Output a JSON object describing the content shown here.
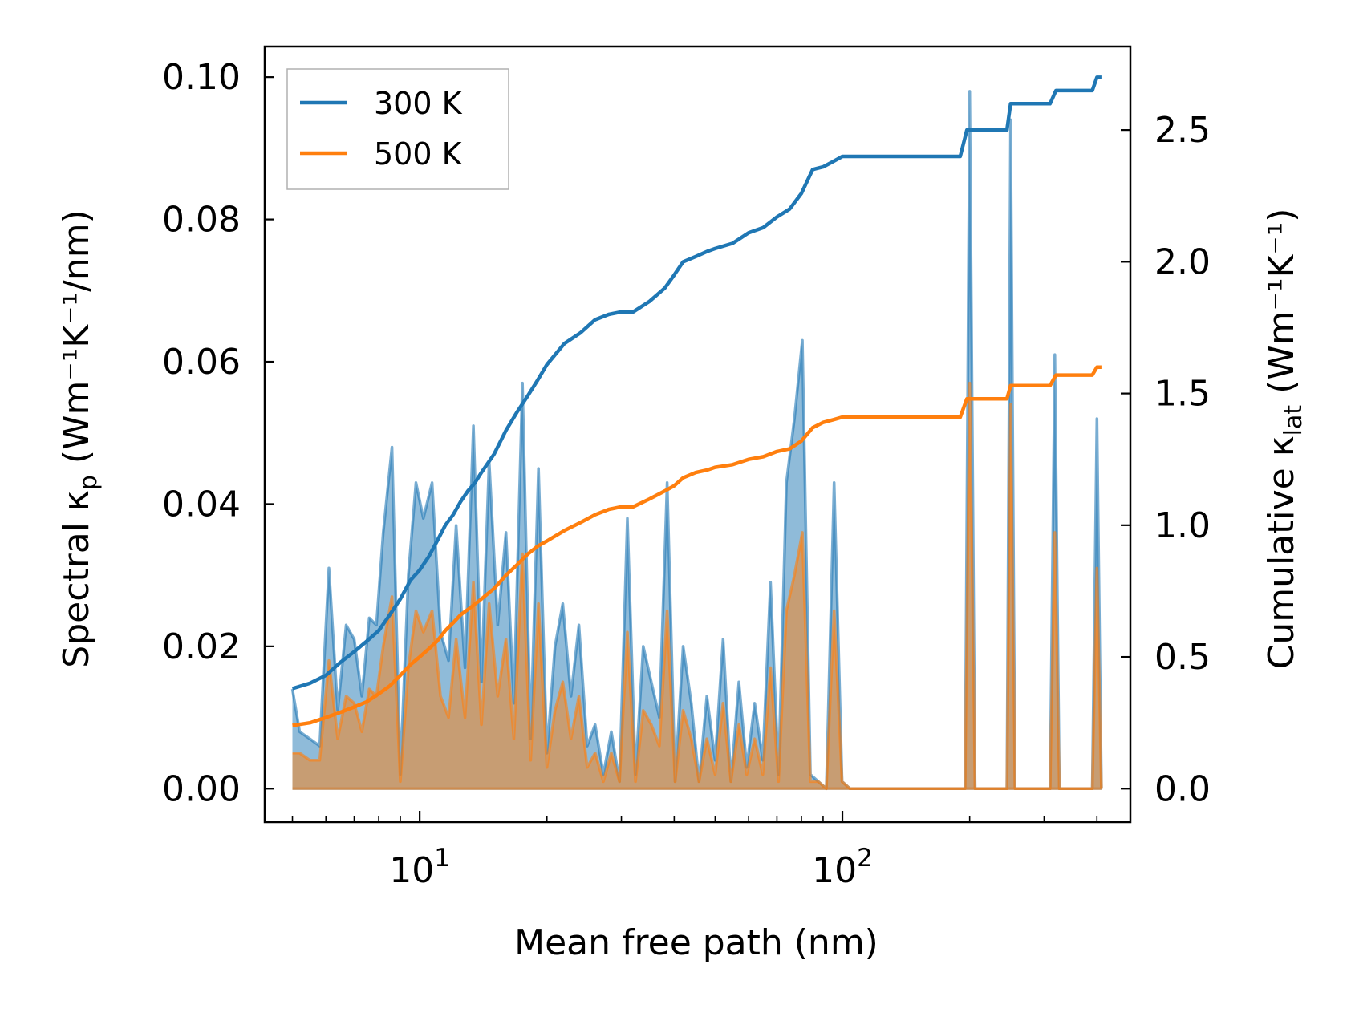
{
  "chart_data": {
    "type": "line",
    "xscale": "log",
    "xlabel": "Mean free path (nm)",
    "ylabel_left": {
      "prefix": "Spectral κ",
      "sub": "p",
      "units": "(Wm⁻¹K⁻¹/nm)"
    },
    "ylabel_right": {
      "prefix": "Cumulative κ",
      "sub": "lat",
      "units": "(Wm⁻¹K⁻¹)"
    },
    "xlim": [
      4.3,
      480
    ],
    "ylim_left": [
      -0.0047,
      0.1043
    ],
    "ylim_right": [
      -0.127,
      2.817
    ],
    "xticks": [
      {
        "value": 10,
        "base": "10",
        "exp": "1"
      },
      {
        "value": 100,
        "base": "10",
        "exp": "2"
      }
    ],
    "yticks_left": [
      "0.00",
      "0.02",
      "0.04",
      "0.06",
      "0.08",
      "0.10"
    ],
    "yticks_left_values": [
      0,
      0.02,
      0.04,
      0.06,
      0.08,
      0.1
    ],
    "yticks_right": [
      "0.0",
      "0.5",
      "1.0",
      "1.5",
      "2.0",
      "2.5"
    ],
    "yticks_right_values": [
      0,
      0.5,
      1.0,
      1.5,
      2.0,
      2.5
    ],
    "legend": {
      "location": "upper-left",
      "entries": [
        "300 K",
        "500 K"
      ]
    },
    "colors": {
      "300 K": "#1f77b4",
      "500 K": "#ff7f0e"
    },
    "series": [
      {
        "name": "300 K",
        "axis": "left",
        "style": "filled-spectral",
        "x": [
          5.0,
          5.2,
          5.5,
          5.8,
          6.1,
          6.4,
          6.7,
          7.0,
          7.3,
          7.6,
          7.9,
          8.2,
          8.6,
          9.0,
          9.4,
          9.8,
          10.2,
          10.7,
          11.2,
          11.7,
          12.2,
          12.8,
          13.4,
          14.0,
          14.6,
          15.3,
          16.0,
          16.7,
          17.5,
          18.3,
          19.1,
          20.0,
          20.9,
          21.8,
          22.8,
          23.8,
          24.9,
          26.0,
          27.2,
          28.4,
          29.7,
          31.0,
          32.4,
          33.8,
          35.3,
          36.9,
          38.5,
          40.2,
          42.0,
          43.9,
          45.8,
          47.8,
          50.0,
          52.2,
          54.5,
          56.9,
          59.4,
          62.0,
          64.8,
          67.6,
          70.6,
          73.7,
          77.0,
          80.4,
          84.0,
          87.7,
          91.6,
          95.6,
          99.8,
          104.2,
          108.8,
          195.0,
          200.0,
          206.0,
          245.0,
          250.0,
          256.0,
          310.0,
          318.0,
          326.0,
          390.0,
          400.0,
          410.0
        ],
        "values": [
          0.014,
          0.008,
          0.007,
          0.006,
          0.031,
          0.011,
          0.023,
          0.021,
          0.013,
          0.024,
          0.023,
          0.036,
          0.048,
          0.002,
          0.03,
          0.043,
          0.038,
          0.043,
          0.022,
          0.018,
          0.037,
          0.017,
          0.051,
          0.015,
          0.046,
          0.023,
          0.036,
          0.012,
          0.057,
          0.007,
          0.045,
          0.005,
          0.02,
          0.026,
          0.013,
          0.023,
          0.006,
          0.009,
          0.002,
          0.008,
          0.001,
          0.038,
          0.002,
          0.02,
          0.015,
          0.01,
          0.043,
          0.001,
          0.02,
          0.012,
          0.001,
          0.013,
          0.004,
          0.021,
          0.001,
          0.015,
          0.003,
          0.012,
          0.004,
          0.029,
          0.002,
          0.043,
          0.052,
          0.063,
          0.002,
          0.001,
          0.0,
          0.043,
          0.001,
          0.0,
          0.0,
          0.0,
          0.098,
          0.0,
          0.0,
          0.094,
          0.0,
          0.0,
          0.061,
          0.0,
          0.0,
          0.052,
          0.0
        ]
      },
      {
        "name": "500 K",
        "axis": "left",
        "style": "filled-spectral",
        "x": [
          5.0,
          5.2,
          5.5,
          5.8,
          6.1,
          6.4,
          6.7,
          7.0,
          7.3,
          7.6,
          7.9,
          8.2,
          8.6,
          9.0,
          9.4,
          9.8,
          10.2,
          10.7,
          11.2,
          11.7,
          12.2,
          12.8,
          13.4,
          14.0,
          14.6,
          15.3,
          16.0,
          16.7,
          17.5,
          18.3,
          19.1,
          20.0,
          20.9,
          21.8,
          22.8,
          23.8,
          24.9,
          26.0,
          27.2,
          28.4,
          29.7,
          31.0,
          32.4,
          33.8,
          35.3,
          36.9,
          38.5,
          40.2,
          42.0,
          43.9,
          45.8,
          47.8,
          50.0,
          52.2,
          54.5,
          56.9,
          59.4,
          62.0,
          64.8,
          67.6,
          70.6,
          73.7,
          77.0,
          80.4,
          84.0,
          87.7,
          91.6,
          95.6,
          99.8,
          104.2,
          108.8,
          195.0,
          200.0,
          206.0,
          245.0,
          250.0,
          256.0,
          310.0,
          318.0,
          326.0,
          390.0,
          400.0,
          410.0
        ],
        "values": [
          0.005,
          0.005,
          0.004,
          0.004,
          0.018,
          0.007,
          0.013,
          0.012,
          0.008,
          0.014,
          0.013,
          0.02,
          0.027,
          0.001,
          0.017,
          0.025,
          0.022,
          0.025,
          0.013,
          0.01,
          0.021,
          0.01,
          0.029,
          0.009,
          0.026,
          0.013,
          0.021,
          0.007,
          0.033,
          0.004,
          0.026,
          0.003,
          0.011,
          0.015,
          0.007,
          0.013,
          0.003,
          0.005,
          0.001,
          0.005,
          0.001,
          0.022,
          0.001,
          0.011,
          0.009,
          0.006,
          0.025,
          0.001,
          0.011,
          0.007,
          0.001,
          0.007,
          0.002,
          0.012,
          0.001,
          0.009,
          0.002,
          0.007,
          0.002,
          0.017,
          0.001,
          0.025,
          0.03,
          0.036,
          0.001,
          0.001,
          0.0,
          0.025,
          0.001,
          0.0,
          0.0,
          0.0,
          0.057,
          0.0,
          0.0,
          0.054,
          0.0,
          0.0,
          0.036,
          0.0,
          0.0,
          0.031,
          0.0
        ]
      },
      {
        "name": "300 K",
        "axis": "right",
        "style": "cumulative-line",
        "x": [
          5.0,
          5.5,
          6.0,
          6.5,
          7.0,
          7.5,
          8.0,
          8.5,
          9.0,
          9.5,
          10.0,
          10.5,
          11.0,
          11.5,
          12.0,
          12.5,
          13.0,
          13.5,
          14.0,
          15.0,
          16.0,
          17.0,
          18.0,
          19.0,
          20.0,
          22.0,
          24.0,
          26.0,
          28.0,
          30.0,
          32.0,
          35.0,
          38.0,
          40.0,
          42.0,
          45.0,
          48.0,
          50.0,
          55.0,
          60.0,
          65.0,
          70.0,
          75.0,
          80.0,
          85.0,
          90.0,
          95.0,
          100.0,
          120.0,
          150.0,
          190.0,
          197.0,
          245.0,
          250.0,
          310.0,
          320.0,
          390.0,
          400.0,
          410.0
        ],
        "values": [
          0.38,
          0.4,
          0.43,
          0.48,
          0.52,
          0.56,
          0.6,
          0.66,
          0.72,
          0.79,
          0.83,
          0.88,
          0.94,
          1.0,
          1.04,
          1.09,
          1.13,
          1.16,
          1.2,
          1.27,
          1.36,
          1.43,
          1.49,
          1.55,
          1.61,
          1.69,
          1.73,
          1.78,
          1.8,
          1.81,
          1.81,
          1.85,
          1.9,
          1.95,
          2.0,
          2.02,
          2.04,
          2.05,
          2.07,
          2.11,
          2.13,
          2.17,
          2.2,
          2.26,
          2.35,
          2.36,
          2.38,
          2.4,
          2.4,
          2.4,
          2.4,
          2.5,
          2.5,
          2.6,
          2.6,
          2.65,
          2.65,
          2.7,
          2.7
        ]
      },
      {
        "name": "500 K",
        "axis": "right",
        "style": "cumulative-line",
        "x": [
          5.0,
          5.5,
          6.0,
          6.5,
          7.0,
          7.5,
          8.0,
          8.5,
          9.0,
          9.5,
          10.0,
          10.5,
          11.0,
          11.5,
          12.0,
          12.5,
          13.0,
          13.5,
          14.0,
          15.0,
          16.0,
          17.0,
          18.0,
          19.0,
          20.0,
          22.0,
          24.0,
          26.0,
          28.0,
          30.0,
          32.0,
          35.0,
          38.0,
          40.0,
          42.0,
          45.0,
          48.0,
          50.0,
          55.0,
          60.0,
          65.0,
          70.0,
          75.0,
          80.0,
          85.0,
          90.0,
          95.0,
          100.0,
          120.0,
          150.0,
          190.0,
          197.0,
          245.0,
          250.0,
          310.0,
          320.0,
          390.0,
          400.0,
          410.0
        ],
        "values": [
          0.24,
          0.25,
          0.27,
          0.29,
          0.31,
          0.33,
          0.36,
          0.39,
          0.43,
          0.47,
          0.5,
          0.53,
          0.56,
          0.6,
          0.63,
          0.66,
          0.68,
          0.7,
          0.72,
          0.76,
          0.81,
          0.85,
          0.89,
          0.92,
          0.94,
          0.98,
          1.01,
          1.04,
          1.06,
          1.07,
          1.07,
          1.1,
          1.13,
          1.15,
          1.18,
          1.2,
          1.21,
          1.22,
          1.23,
          1.25,
          1.26,
          1.28,
          1.29,
          1.32,
          1.37,
          1.39,
          1.4,
          1.41,
          1.41,
          1.41,
          1.41,
          1.48,
          1.48,
          1.53,
          1.53,
          1.57,
          1.57,
          1.6,
          1.6
        ]
      }
    ]
  }
}
